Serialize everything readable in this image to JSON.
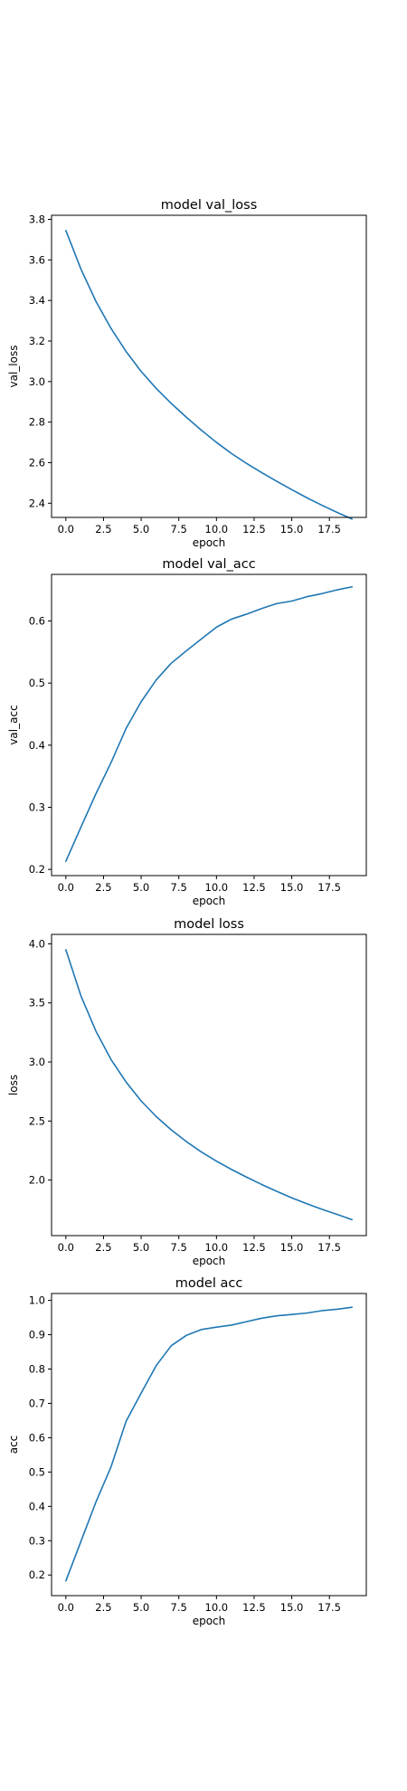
{
  "figure": {
    "series_color": "#1f77b4"
  },
  "chart_data": [
    {
      "type": "line",
      "title": "model val_loss",
      "xlabel": "epoch",
      "ylabel": "val_loss",
      "xlim": [
        -0.95,
        19.95
      ],
      "ylim": [
        2.33,
        3.82
      ],
      "xticks": [
        0,
        2.5,
        5,
        7.5,
        10,
        12.5,
        15,
        17.5
      ],
      "xtick_labels": [
        "0.0",
        "2.5",
        "5.0",
        "7.5",
        "10.0",
        "12.5",
        "15.0",
        "17.5"
      ],
      "yticks": [
        2.4,
        2.6,
        2.8,
        3.0,
        3.2,
        3.4,
        3.6,
        3.8
      ],
      "ytick_labels": [
        "2.4",
        "2.6",
        "2.8",
        "3.0",
        "3.2",
        "3.4",
        "3.6",
        "3.8"
      ],
      "grid": false,
      "x": [
        0,
        1,
        2,
        3,
        4,
        5,
        6,
        7,
        8,
        9,
        10,
        11,
        12,
        13,
        14,
        15,
        16,
        17,
        18,
        19
      ],
      "values": [
        3.745,
        3.555,
        3.395,
        3.262,
        3.148,
        3.05,
        2.966,
        2.892,
        2.824,
        2.76,
        2.7,
        2.645,
        2.596,
        2.551,
        2.508,
        2.467,
        2.427,
        2.39,
        2.355,
        2.322
      ]
    },
    {
      "type": "line",
      "title": "model val_acc",
      "xlabel": "epoch",
      "ylabel": "val_acc",
      "xlim": [
        -0.95,
        19.95
      ],
      "ylim": [
        0.19,
        0.675
      ],
      "xticks": [
        0,
        2.5,
        5,
        7.5,
        10,
        12.5,
        15,
        17.5
      ],
      "xtick_labels": [
        "0.0",
        "2.5",
        "5.0",
        "7.5",
        "10.0",
        "12.5",
        "15.0",
        "17.5"
      ],
      "yticks": [
        0.2,
        0.3,
        0.4,
        0.5,
        0.6
      ],
      "ytick_labels": [
        "0.2",
        "0.3",
        "0.4",
        "0.5",
        "0.6"
      ],
      "grid": false,
      "x": [
        0,
        1,
        2,
        3,
        4,
        5,
        6,
        7,
        8,
        9,
        10,
        11,
        12,
        13,
        14,
        15,
        16,
        17,
        18,
        19
      ],
      "values": [
        0.213,
        0.268,
        0.322,
        0.372,
        0.427,
        0.47,
        0.505,
        0.532,
        0.552,
        0.571,
        0.59,
        0.603,
        0.611,
        0.62,
        0.628,
        0.632,
        0.639,
        0.644,
        0.65,
        0.655
      ]
    },
    {
      "type": "line",
      "title": "model loss",
      "xlabel": "epoch",
      "ylabel": "loss",
      "xlim": [
        -0.95,
        19.95
      ],
      "ylim": [
        1.53,
        4.08
      ],
      "xticks": [
        0,
        2.5,
        5,
        7.5,
        10,
        12.5,
        15,
        17.5
      ],
      "xtick_labels": [
        "0.0",
        "2.5",
        "5.0",
        "7.5",
        "10.0",
        "12.5",
        "15.0",
        "17.5"
      ],
      "yticks": [
        2.0,
        2.5,
        3.0,
        3.5,
        4.0
      ],
      "ytick_labels": [
        "2.0",
        "2.5",
        "3.0",
        "3.5",
        "4.0"
      ],
      "grid": false,
      "x": [
        0,
        1,
        2,
        3,
        4,
        5,
        6,
        7,
        8,
        9,
        10,
        11,
        12,
        13,
        14,
        15,
        16,
        17,
        18,
        19
      ],
      "values": [
        3.95,
        3.56,
        3.26,
        3.02,
        2.83,
        2.67,
        2.538,
        2.425,
        2.326,
        2.238,
        2.16,
        2.09,
        2.025,
        1.963,
        1.905,
        1.85,
        1.8,
        1.753,
        1.71,
        1.665
      ]
    },
    {
      "type": "line",
      "title": "model acc",
      "xlabel": "epoch",
      "ylabel": "acc",
      "xlim": [
        -0.95,
        19.95
      ],
      "ylim": [
        0.14,
        1.02
      ],
      "xticks": [
        0,
        2.5,
        5,
        7.5,
        10,
        12.5,
        15,
        17.5
      ],
      "xtick_labels": [
        "0.0",
        "2.5",
        "5.0",
        "7.5",
        "10.0",
        "12.5",
        "15.0",
        "17.5"
      ],
      "yticks": [
        0.2,
        0.3,
        0.4,
        0.5,
        0.6,
        0.7,
        0.8,
        0.9,
        1.0
      ],
      "ytick_labels": [
        "0.2",
        "0.3",
        "0.4",
        "0.5",
        "0.6",
        "0.7",
        "0.8",
        "0.9",
        "1.0"
      ],
      "grid": false,
      "x": [
        0,
        1,
        2,
        3,
        4,
        5,
        6,
        7,
        8,
        9,
        10,
        11,
        12,
        13,
        14,
        15,
        16,
        17,
        18,
        19
      ],
      "values": [
        0.183,
        0.298,
        0.413,
        0.515,
        0.648,
        0.73,
        0.81,
        0.868,
        0.898,
        0.915,
        0.922,
        0.928,
        0.938,
        0.948,
        0.955,
        0.959,
        0.963,
        0.97,
        0.974,
        0.98
      ]
    }
  ]
}
